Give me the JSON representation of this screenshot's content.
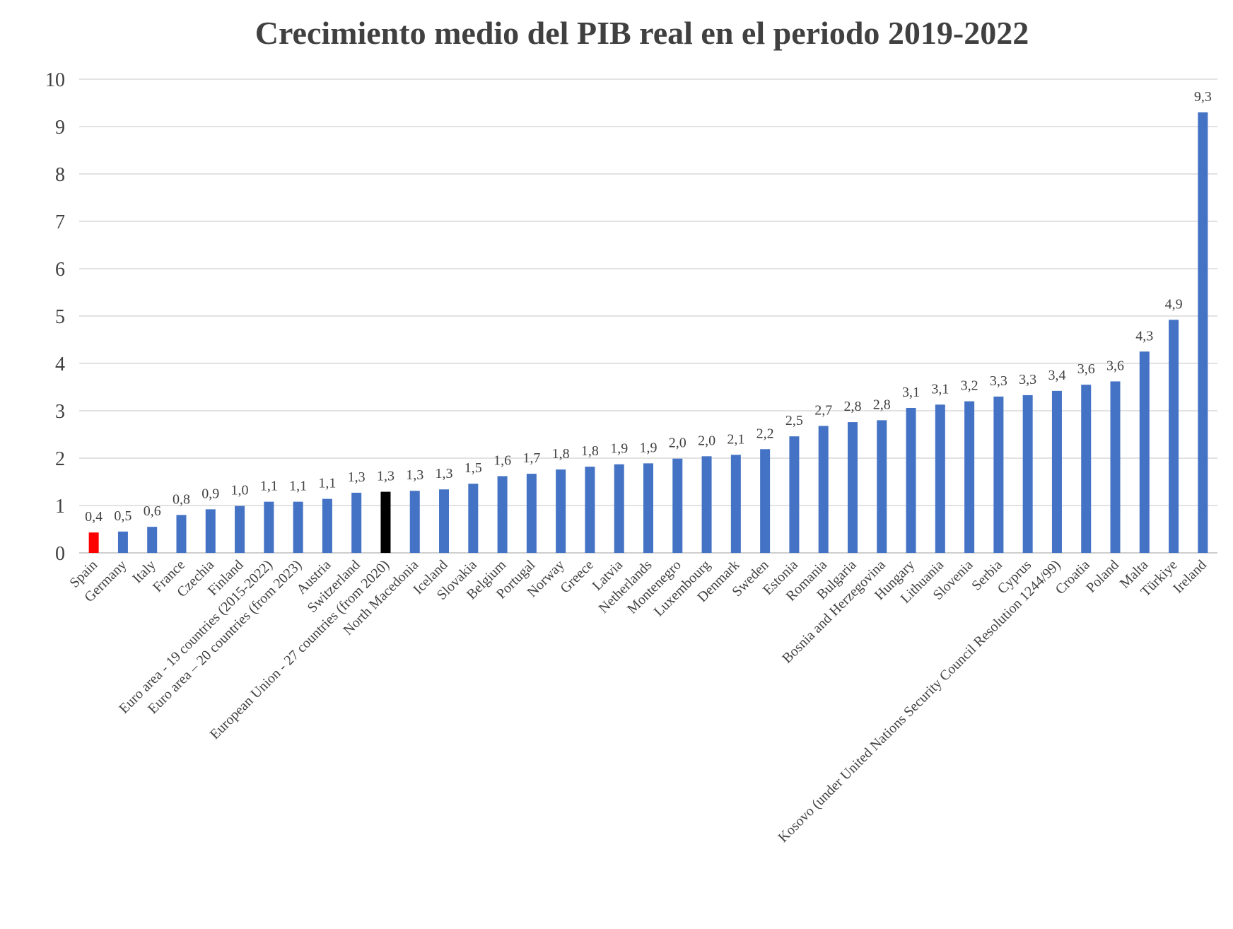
{
  "chart_data": {
    "type": "bar",
    "title": "Crecimiento  medio del PIB real  en el periodo 2019-2022",
    "xlabel": "",
    "ylabel": "",
    "ylim": [
      0,
      10
    ],
    "yticks": [
      "0",
      "1",
      "2",
      "3",
      "4",
      "5",
      "6",
      "7",
      "8",
      "9",
      "10"
    ],
    "grid": true,
    "legend": "none",
    "colors": {
      "default": "#4472c4",
      "highlight_red": "#ff0000",
      "highlight_black": "#000000"
    },
    "categories": [
      "Spain",
      "Germany",
      "Italy",
      "France",
      "Czechia",
      "Finland",
      "Euro area - 19 countries  (2015-2022)",
      "Euro area – 20 countries (from 2023)",
      "Austria",
      "Switzerland",
      "European Union - 27 countries (from 2020)",
      "North Macedonia",
      "Iceland",
      "Slovakia",
      "Belgium",
      "Portugal",
      "Norway",
      "Greece",
      "Latvia",
      "Netherlands",
      "Montenegro",
      "Luxembourg",
      "Denmark",
      "Sweden",
      "Estonia",
      "Romania",
      "Bulgaria",
      "Bosnia and Herzegovina",
      "Hungary",
      "Lithuania",
      "Slovenia",
      "Serbia",
      "Cyprus",
      "Kosovo (under United Nations Security Council Resolution 1244/99)",
      "Croatia",
      "Poland",
      "Malta",
      "Türkiye",
      "Ireland"
    ],
    "values": [
      0.43,
      0.45,
      0.55,
      0.8,
      0.92,
      0.99,
      1.08,
      1.08,
      1.14,
      1.27,
      1.29,
      1.31,
      1.34,
      1.46,
      1.62,
      1.67,
      1.76,
      1.82,
      1.87,
      1.89,
      1.99,
      2.04,
      2.07,
      2.19,
      2.46,
      2.68,
      2.76,
      2.8,
      3.06,
      3.13,
      3.2,
      3.3,
      3.33,
      3.42,
      3.55,
      3.62,
      4.25,
      4.92,
      9.3
    ],
    "data_labels": [
      "0,4",
      "0,5",
      "0,6",
      "0,8",
      "0,9",
      "1,0",
      "1,1",
      "1,1",
      "1,1",
      "1,3",
      "1,3",
      "1,3",
      "1,3",
      "1,5",
      "1,6",
      "1,7",
      "1,8",
      "1,8",
      "1,9",
      "1,9",
      "2,0",
      "2,0",
      "2,1",
      "2,2",
      "2,5",
      "2,7",
      "2,8",
      "2,8",
      "3,1",
      "3,1",
      "3,2",
      "3,3",
      "3,3",
      "3,4",
      "3,6",
      "3,6",
      "4,3",
      "4,9",
      "9,3"
    ],
    "bar_colors": [
      "#ff0000",
      "#4472c4",
      "#4472c4",
      "#4472c4",
      "#4472c4",
      "#4472c4",
      "#4472c4",
      "#4472c4",
      "#4472c4",
      "#4472c4",
      "#000000",
      "#4472c4",
      "#4472c4",
      "#4472c4",
      "#4472c4",
      "#4472c4",
      "#4472c4",
      "#4472c4",
      "#4472c4",
      "#4472c4",
      "#4472c4",
      "#4472c4",
      "#4472c4",
      "#4472c4",
      "#4472c4",
      "#4472c4",
      "#4472c4",
      "#4472c4",
      "#4472c4",
      "#4472c4",
      "#4472c4",
      "#4472c4",
      "#4472c4",
      "#4472c4",
      "#4472c4",
      "#4472c4",
      "#4472c4",
      "#4472c4",
      "#4472c4"
    ]
  }
}
